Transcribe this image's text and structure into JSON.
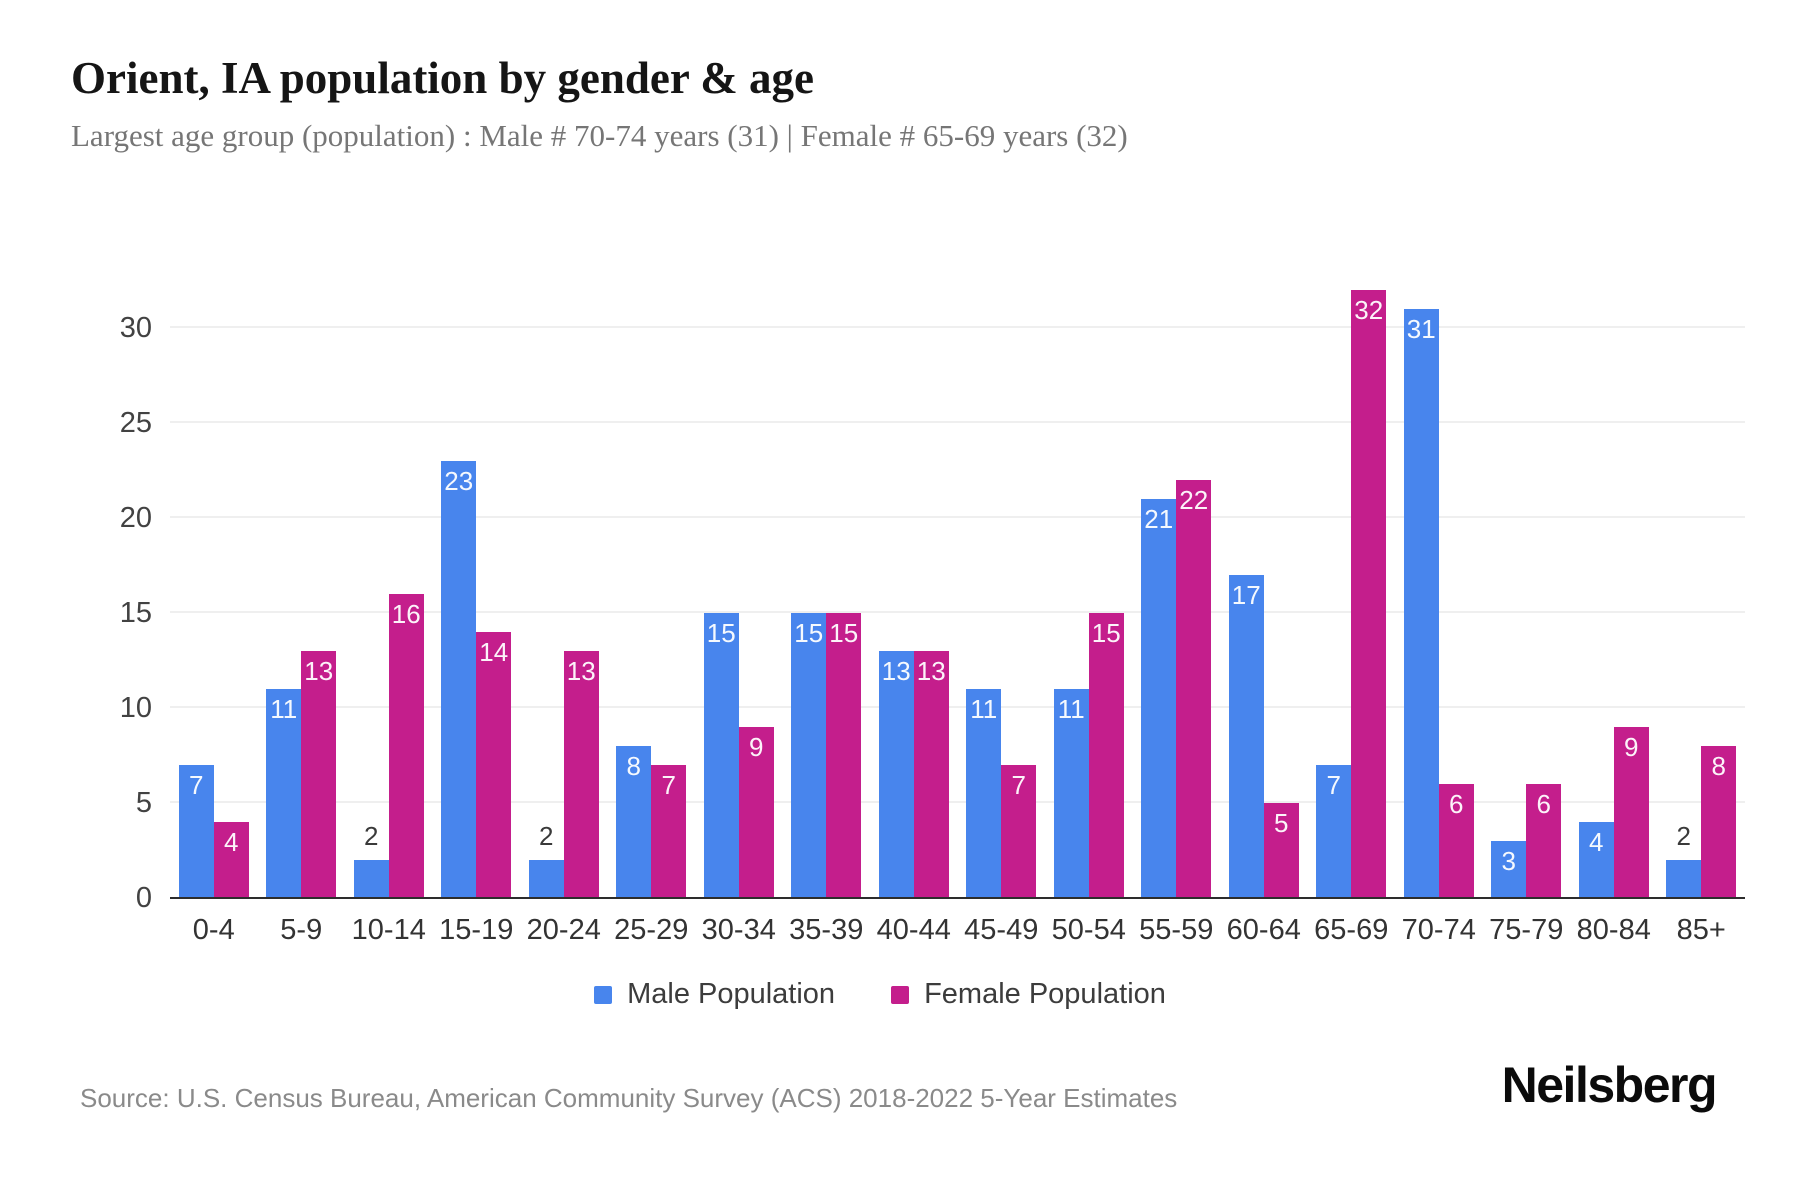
{
  "header": {
    "title": "Orient, IA population by gender & age",
    "subtitle": "Largest age group (population) : Male # 70-74 years (31) | Female # 65-69 years (32)"
  },
  "chart_data": {
    "type": "bar",
    "title": "Orient, IA population by gender & age",
    "categories": [
      "0-4",
      "5-9",
      "10-14",
      "15-19",
      "20-24",
      "25-29",
      "30-34",
      "35-39",
      "40-44",
      "45-49",
      "50-54",
      "55-59",
      "60-64",
      "65-69",
      "70-74",
      "75-79",
      "80-84",
      "85+"
    ],
    "series": [
      {
        "name": "Male Population",
        "color": "#4885ED",
        "values": [
          7,
          11,
          2,
          23,
          2,
          8,
          15,
          15,
          13,
          11,
          11,
          21,
          17,
          7,
          31,
          3,
          4,
          2
        ]
      },
      {
        "name": "Female Population",
        "color": "#C41E8C",
        "values": [
          4,
          13,
          16,
          14,
          13,
          7,
          9,
          15,
          13,
          7,
          15,
          22,
          5,
          32,
          6,
          6,
          9,
          8
        ]
      }
    ],
    "xlabel": "",
    "ylabel": "",
    "ylim": [
      0,
      33.5
    ],
    "yticks": [
      0,
      5,
      10,
      15,
      20,
      25,
      30
    ],
    "grid": "horizontal",
    "legend_position": "bottom",
    "bar_label_rule": "value shown on every bar; values of 2 or less placed above bar in dark text, others inside top of bar in white"
  },
  "footer": {
    "source": "Source: U.S. Census Bureau, American Community Survey (ACS) 2018-2022 5-Year Estimates",
    "logo": "Neilsberg"
  }
}
